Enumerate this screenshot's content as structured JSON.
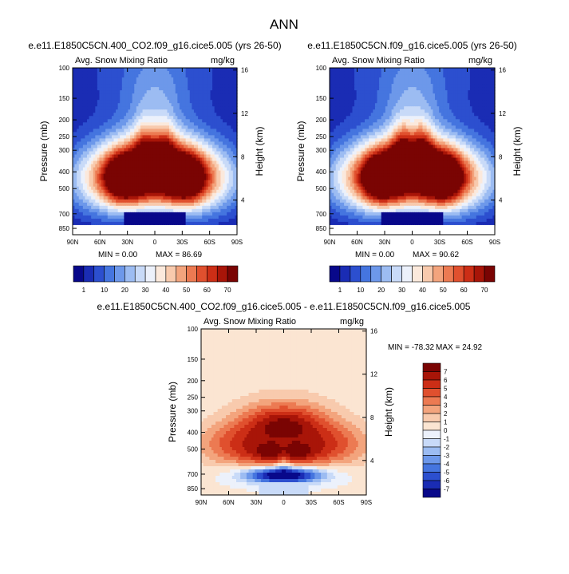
{
  "figure_title": "ANN",
  "chart_data": [
    {
      "type": "heatmap",
      "id": "p1",
      "title": "e.e11.E1850C5CN.400_CO2.f09_g16.cice5.005 (yrs 26-50)",
      "subtitle_left": "Avg. Snow Mixing Ratio",
      "subtitle_right": "mg/kg",
      "ylabel": "Pressure (mb)",
      "ylabel_right": "Height (km)",
      "x_ticks": [
        "90N",
        "60N",
        "30N",
        "0",
        "30S",
        "60S",
        "90S"
      ],
      "y_ticks": [
        "100",
        "150",
        "200",
        "250",
        "300",
        "400",
        "500",
        "700",
        "850"
      ],
      "y_ticks_right": [
        "16",
        "12",
        "8",
        "4"
      ],
      "min_label": "MIN =   0.00",
      "max_label": "MAX =  86.69",
      "colorbar_labels": [
        "1",
        "10",
        "20",
        "30",
        "40",
        "50",
        "60",
        "70"
      ]
    },
    {
      "type": "heatmap",
      "id": "p2",
      "title": "e.e11.E1850C5CN.f09_g16.cice5.005 (yrs 26-50)",
      "subtitle_left": "Avg. Snow Mixing Ratio",
      "subtitle_right": "mg/kg",
      "ylabel": "Pressure (mb)",
      "ylabel_right": "Height (km)",
      "x_ticks": [
        "90N",
        "60N",
        "30N",
        "0",
        "30S",
        "60S",
        "90S"
      ],
      "y_ticks": [
        "100",
        "150",
        "200",
        "250",
        "300",
        "400",
        "500",
        "700",
        "850"
      ],
      "y_ticks_right": [
        "16",
        "12",
        "8",
        "4"
      ],
      "min_label": "MIN =   0.00",
      "max_label": "MAX =  90.62",
      "colorbar_labels": [
        "1",
        "10",
        "20",
        "30",
        "40",
        "50",
        "60",
        "70"
      ]
    },
    {
      "type": "heatmap",
      "id": "p3",
      "title": "e.e11.E1850C5CN.400_CO2.f09_g16.cice5.005 - e.e11.E1850C5CN.f09_g16.cice5.005",
      "subtitle_left": "Avg. Snow Mixing Ratio",
      "subtitle_right": "mg/kg",
      "ylabel": "Pressure (mb)",
      "ylabel_right": "Height (km)",
      "x_ticks": [
        "90N",
        "60N",
        "30N",
        "0",
        "30S",
        "60S",
        "90S"
      ],
      "y_ticks": [
        "100",
        "150",
        "200",
        "250",
        "300",
        "400",
        "500",
        "700",
        "850"
      ],
      "y_ticks_right": [
        "16",
        "12",
        "8",
        "4"
      ],
      "min_label": "MIN = -78.32",
      "max_label": "MAX =  24.92",
      "colorbar_labels": [
        "7",
        "6",
        "5",
        "4",
        "3",
        "2",
        "1",
        "0",
        "-1",
        "-2",
        "-3",
        "-4",
        "-5",
        "-6",
        "-7"
      ]
    }
  ],
  "colors": {
    "abs_scale": [
      "#08088a",
      "#1a2cb4",
      "#2c4fcf",
      "#4575df",
      "#6d98ea",
      "#9cbcf2",
      "#c8daf8",
      "#ecf1fb",
      "#fbe9dc",
      "#f8caad",
      "#f3a47d",
      "#ec7a52",
      "#e0502e",
      "#cc2e16",
      "#a81508",
      "#7a0403"
    ],
    "diff_scale": [
      "#7a0403",
      "#a81508",
      "#cc2e16",
      "#e0502e",
      "#ec7a52",
      "#f3a47d",
      "#f8caad",
      "#fbe5d2",
      "#ecf1fb",
      "#c8daf8",
      "#9cbcf2",
      "#6d98ea",
      "#4575df",
      "#2c4fcf",
      "#1a2cb4",
      "#08088a"
    ]
  }
}
